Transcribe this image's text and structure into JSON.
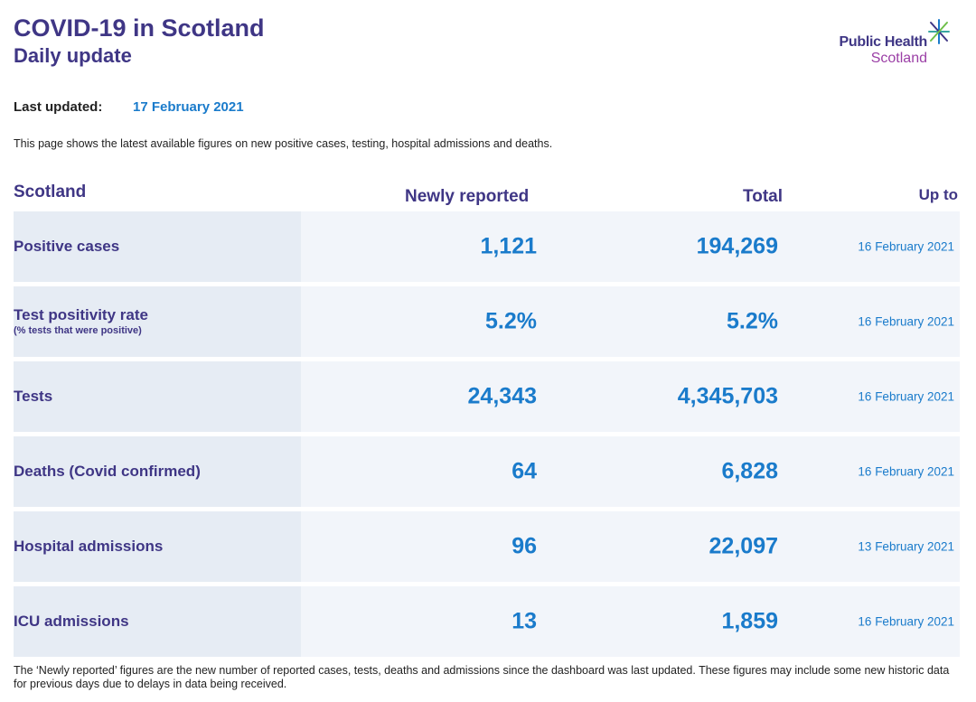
{
  "header": {
    "title": "COVID-19 in Scotland",
    "subtitle": "Daily update",
    "logo_line1": "Public Health",
    "logo_line2": "Scotland"
  },
  "updated": {
    "label": "Last updated:",
    "date": "17 February 2021"
  },
  "intro": "This page shows the latest available figures on new positive cases, testing, hospital admissions and deaths.",
  "table": {
    "headers": {
      "region": "Scotland",
      "newly": "Newly reported",
      "total": "Total",
      "upto": "Up to"
    },
    "rows": [
      {
        "label": "Positive cases",
        "sublabel": "",
        "newly": "1,121",
        "total": "194,269",
        "date": "16 February 2021"
      },
      {
        "label": "Test positivity rate",
        "sublabel": "(% tests that were positive)",
        "newly": "5.2%",
        "total": "5.2%",
        "date": "16 February 2021"
      },
      {
        "label": "Tests",
        "sublabel": "",
        "newly": "24,343",
        "total": "4,345,703",
        "date": "16 February 2021"
      },
      {
        "label": "Deaths (Covid confirmed)",
        "sublabel": "",
        "newly": "64",
        "total": "6,828",
        "date": "16 February 2021"
      },
      {
        "label": "Hospital admissions",
        "sublabel": "",
        "newly": "96",
        "total": "22,097",
        "date": "13 February 2021"
      },
      {
        "label": "ICU admissions",
        "sublabel": "",
        "newly": "13",
        "total": "1,859",
        "date": "16 February 2021"
      }
    ]
  },
  "footer": "The ‘Newly reported’ figures are the new number of reported cases, tests, deaths and admissions since the dashboard was last updated. These figures may include some new historic data for previous days due to delays in data being received.",
  "colors": {
    "brand_purple": "#3f3685",
    "accent_blue": "#1a7bcb",
    "logo_magenta": "#9b3fa6",
    "row_bg": "#f2f5fa",
    "label_bg": "#e6ecf4"
  }
}
